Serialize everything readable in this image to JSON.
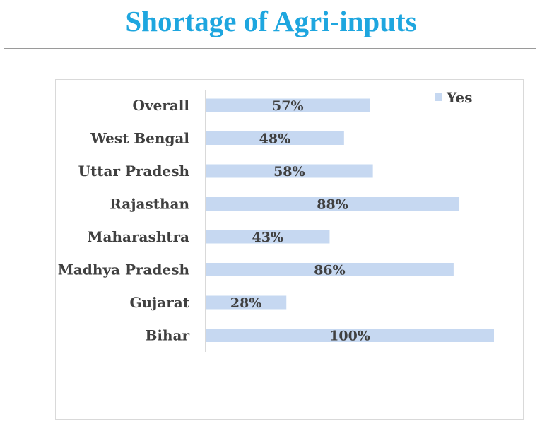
{
  "page": {
    "title": "Shortage of Agri-inputs"
  },
  "chart_data": {
    "type": "bar",
    "orientation": "horizontal",
    "categories": [
      "Overall",
      "West Bengal",
      "Uttar Pradesh",
      "Rajasthan",
      "Maharashtra",
      "Madhya Pradesh",
      "Gujarat",
      "Bihar"
    ],
    "series": [
      {
        "name": "Yes",
        "values": [
          57,
          48,
          58,
          88,
          43,
          86,
          28,
          100
        ],
        "labels": [
          "57%",
          "48%",
          "58%",
          "88%",
          "43%",
          "86%",
          "28%",
          "100%"
        ],
        "color": "#c6d8f1"
      }
    ],
    "xlim": [
      0,
      100
    ],
    "grid": false,
    "legend": "top-right"
  }
}
